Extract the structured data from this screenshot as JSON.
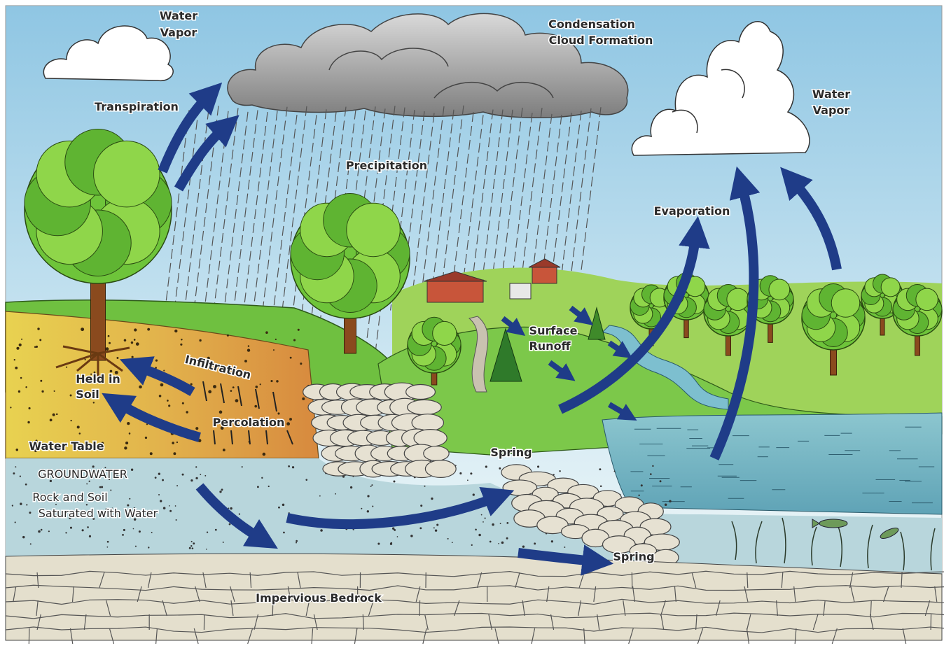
{
  "labels": {
    "water_vapor_left": [
      "Water",
      "Vapor"
    ],
    "condensation": [
      "Condensation",
      "Cloud Formation"
    ],
    "water_vapor_right": [
      "Water",
      "Vapor"
    ],
    "transpiration": "Transpiration",
    "precipitation": "Precipitation",
    "evaporation": "Evaporation",
    "surface_runoff": [
      "Surface",
      "Runoff"
    ],
    "infiltration": "Infiltration",
    "held_in_soil": [
      "Held in",
      "Soil"
    ],
    "percolation": "Percolation",
    "water_table": "Water Table",
    "groundwater": "GROUNDWATER",
    "saturated": [
      "Rock and Soil",
      "Saturated with Water"
    ],
    "spring_upper": "Spring",
    "spring_lower": "Spring",
    "bedrock": "Impervious Bedrock"
  }
}
